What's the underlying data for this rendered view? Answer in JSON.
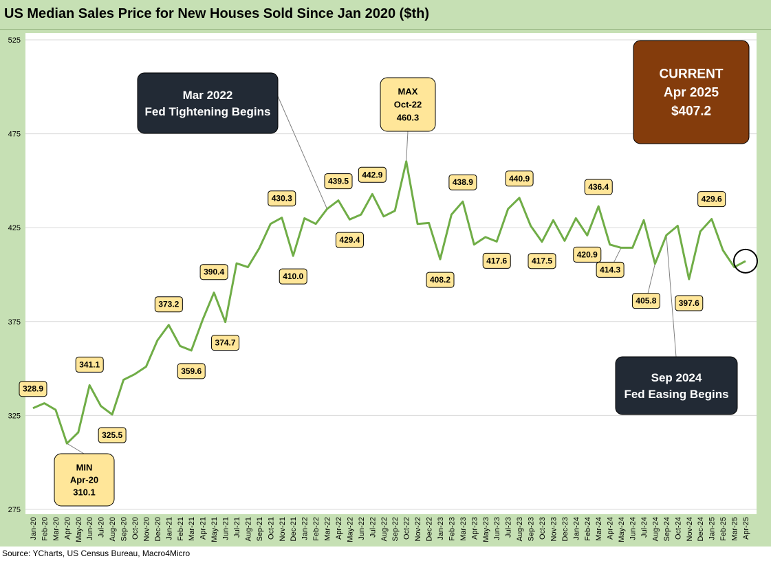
{
  "chart_data": {
    "type": "line",
    "title": "US Median Sales Price for New Houses Sold Since Jan 2020 ($th)",
    "source": "Source: YCharts, US Census Bureau, Macro4Micro",
    "ylim": [
      275,
      525
    ],
    "yticks": [
      "275",
      "325",
      "375",
      "425",
      "475",
      "525"
    ],
    "grid": true,
    "legend": "none",
    "line_color": "#70ad47",
    "categories": [
      "Jan-20",
      "Feb-20",
      "Mar-20",
      "Apr-20",
      "May-20",
      "Jun-20",
      "Jul-20",
      "Aug-20",
      "Sep-20",
      "Oct-20",
      "Nov-20",
      "Dec-20",
      "Jan-21",
      "Feb-21",
      "Mar-21",
      "Apr-21",
      "May-21",
      "Jun-21",
      "Jul-21",
      "Aug-21",
      "Sep-21",
      "Oct-21",
      "Nov-21",
      "Dec-21",
      "Jan-22",
      "Feb-22",
      "Mar-22",
      "Apr-22",
      "May-22",
      "Jun-22",
      "Jul-22",
      "Aug-22",
      "Sep-22",
      "Oct-22",
      "Nov-22",
      "Dec-22",
      "Jan-23",
      "Feb-23",
      "Mar-23",
      "Apr-23",
      "May-23",
      "Jun-23",
      "Jul-23",
      "Aug-23",
      "Sep-23",
      "Oct-23",
      "Nov-23",
      "Dec-23",
      "Jan-24",
      "Feb-24",
      "Mar-24",
      "Apr-24",
      "May-24",
      "Jun-24",
      "Jul-24",
      "Aug-24",
      "Sep-24",
      "Oct-24",
      "Nov-24",
      "Dec-24",
      "Jan-25",
      "Feb-25",
      "Mar-25",
      "Apr-25"
    ],
    "values": [
      328.9,
      331.5,
      328.0,
      310.1,
      316.0,
      341.1,
      330.0,
      325.5,
      344.0,
      347.0,
      351.0,
      365.0,
      373.2,
      362.0,
      359.6,
      376.0,
      390.4,
      374.7,
      406.0,
      404.0,
      414.0,
      427.0,
      430.3,
      410.0,
      430.0,
      427.0,
      435.0,
      439.5,
      429.4,
      432.0,
      442.9,
      431.0,
      434.0,
      460.3,
      427.0,
      427.5,
      408.2,
      432.0,
      438.9,
      416.0,
      420.0,
      417.6,
      435.0,
      440.9,
      426.0,
      417.5,
      429.0,
      418.0,
      430.0,
      420.9,
      436.4,
      416.0,
      414.3,
      414.3,
      429.0,
      405.8,
      421.0,
      426.0,
      397.6,
      423.0,
      429.6,
      413.0,
      404.0,
      407.2
    ],
    "data_labels": [
      {
        "i": 0,
        "text": "328.9"
      },
      {
        "i": 5,
        "text": "341.1"
      },
      {
        "i": 7,
        "text": "325.5"
      },
      {
        "i": 12,
        "text": "373.2"
      },
      {
        "i": 14,
        "text": "359.6"
      },
      {
        "i": 16,
        "text": "390.4"
      },
      {
        "i": 17,
        "text": "374.7"
      },
      {
        "i": 22,
        "text": "430.3"
      },
      {
        "i": 23,
        "text": "410.0"
      },
      {
        "i": 27,
        "text": "439.5"
      },
      {
        "i": 28,
        "text": "429.4"
      },
      {
        "i": 30,
        "text": "442.9"
      },
      {
        "i": 36,
        "text": "408.2"
      },
      {
        "i": 38,
        "text": "438.9"
      },
      {
        "i": 41,
        "text": "417.6"
      },
      {
        "i": 43,
        "text": "440.9"
      },
      {
        "i": 45,
        "text": "417.5"
      },
      {
        "i": 49,
        "text": "420.9"
      },
      {
        "i": 50,
        "text": "436.4"
      },
      {
        "i": 52,
        "text": "414.3"
      },
      {
        "i": 55,
        "text": "405.8"
      },
      {
        "i": 58,
        "text": "397.6"
      },
      {
        "i": 60,
        "text": "429.6"
      }
    ],
    "annotations": [
      {
        "name": "min-callout",
        "lines": [
          "MIN",
          "Apr-20",
          "310.1"
        ],
        "i": 3
      },
      {
        "name": "max-callout",
        "lines": [
          "MAX",
          "Oct-22",
          "460.3"
        ],
        "i": 33
      },
      {
        "name": "fed-tightening-callout",
        "lines": [
          "Mar 2022",
          "Fed Tightening Begins"
        ],
        "i": 26
      },
      {
        "name": "fed-easing-callout",
        "lines": [
          "Sep 2024",
          "Fed Easing Begins"
        ],
        "i": 56
      },
      {
        "name": "current-callout",
        "lines": [
          "CURRENT",
          "Apr 2025",
          "$407.2"
        ],
        "i": 63
      }
    ],
    "colors": {
      "frame": "#c6e0b4",
      "line": "#70ad47",
      "label_fill": "#ffe699",
      "dark_box": "#222a35",
      "current_box": "#843c0c"
    }
  }
}
